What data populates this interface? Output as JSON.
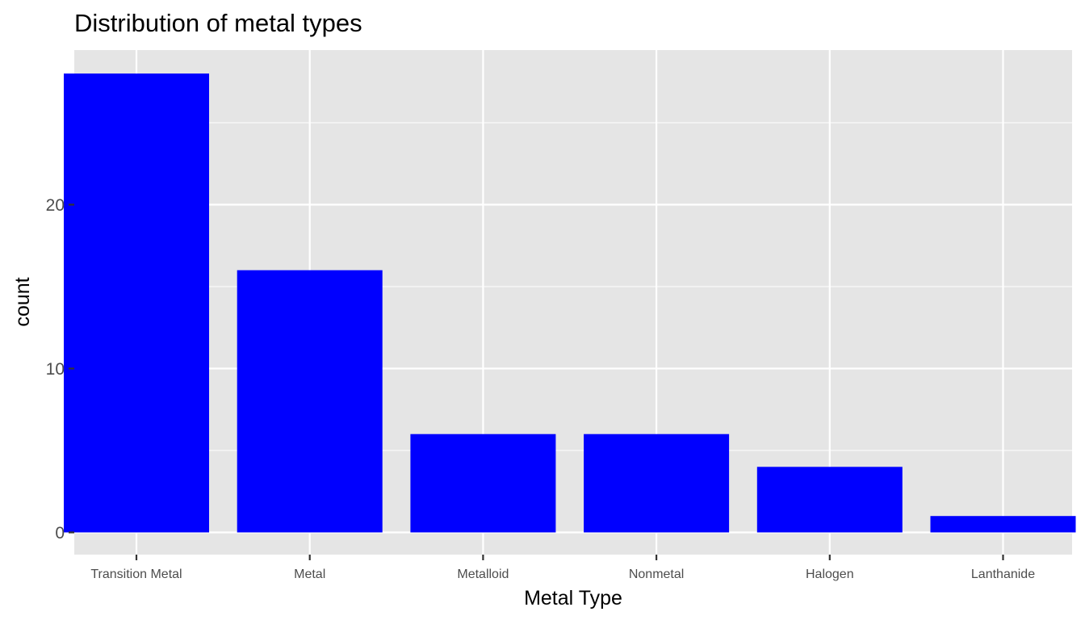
{
  "chart_data": {
    "type": "bar",
    "title": "Distribution of metal types",
    "xlabel": "Metal Type",
    "ylabel": "count",
    "categories": [
      "Transition Metal",
      "Metal",
      "Metalloid",
      "Nonmetal",
      "Halogen",
      "Lanthanide"
    ],
    "values": [
      28,
      16,
      6,
      6,
      4,
      1
    ],
    "ylim": [
      0,
      29.4
    ],
    "y_major_ticks": [
      0,
      10,
      20
    ],
    "y_minor_ticks": [
      5,
      15,
      25
    ],
    "y_tick_labels": [
      "0",
      "10",
      "20"
    ],
    "grid": true,
    "legend": "none",
    "colors": {
      "bar": "#0000ff",
      "panel_background": "#e5e5e5",
      "grid_line": "#ffffff",
      "tick_label": "#4d4d4d",
      "tick_mark": "#333333",
      "text": "#000000"
    }
  }
}
